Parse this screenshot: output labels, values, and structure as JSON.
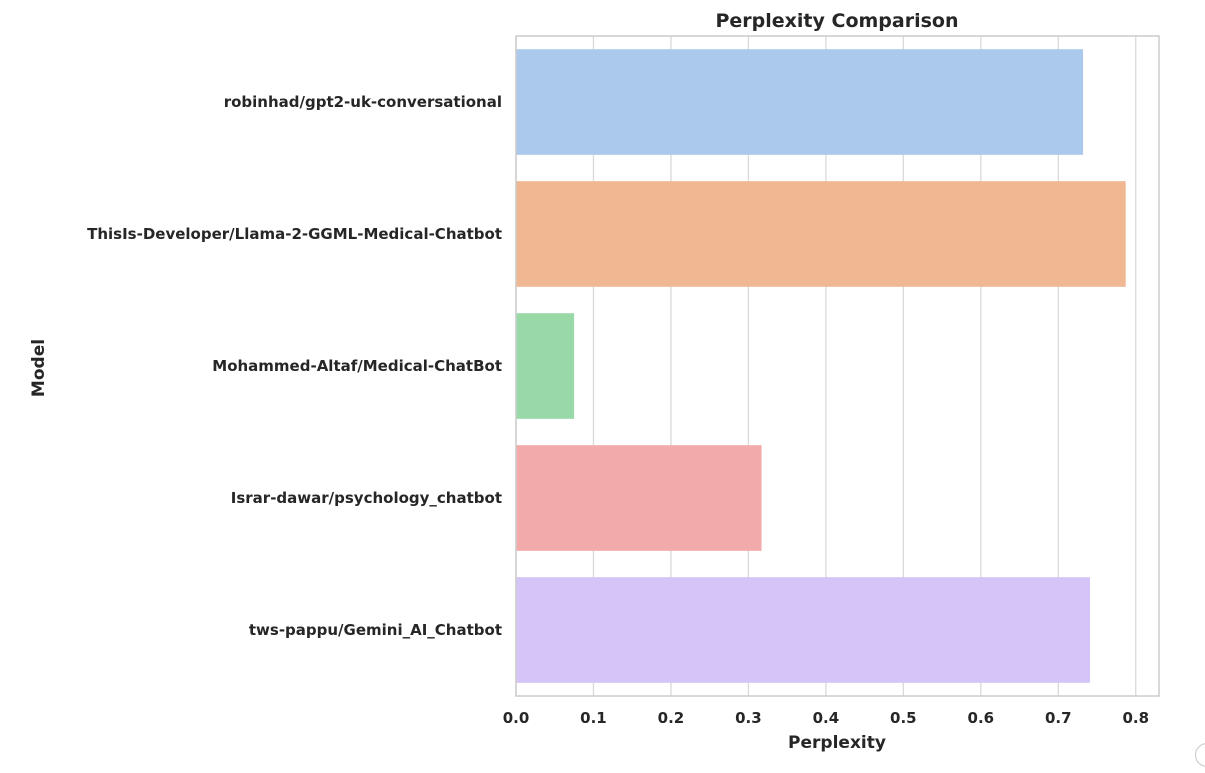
{
  "chart_data": {
    "type": "bar",
    "orientation": "horizontal",
    "title": "Perplexity Comparison",
    "xlabel": "Perplexity",
    "ylabel": "Model",
    "xlim": [
      0,
      0.83
    ],
    "x_ticks": [
      0.0,
      0.1,
      0.2,
      0.3,
      0.4,
      0.5,
      0.6,
      0.7,
      0.8
    ],
    "x_tick_labels": [
      "0.0",
      "0.1",
      "0.2",
      "0.3",
      "0.4",
      "0.5",
      "0.6",
      "0.7",
      "0.8"
    ],
    "grid": "vertical",
    "categories": [
      "robinhad/gpt2-uk-conversational",
      "ThisIs-Developer/Llama-2-GGML-Medical-Chatbot",
      "Mohammed-Altaf/Medical-ChatBot",
      "Israr-dawar/psychology_chatbot",
      "tws-pappu/Gemini_AI_Chatbot"
    ],
    "values": [
      0.732,
      0.787,
      0.075,
      0.317,
      0.741
    ],
    "colors": [
      "#abc9ed",
      "#f0b793",
      "#99d9a8",
      "#f2aaaa",
      "#d4c4f7"
    ]
  }
}
